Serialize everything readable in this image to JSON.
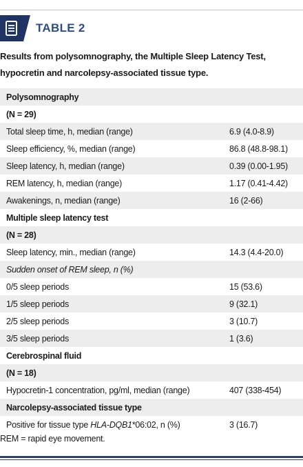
{
  "header": {
    "title": "TABLE 2"
  },
  "caption": "Results from polysomnography, the Multiple Sleep Latency Test, hypocretin and narcolepsy-associated tissue type.",
  "table": {
    "rows": [
      [
        "Polysomnography"
      ],
      [
        "(N = 29)"
      ],
      [
        "Total sleep time, h, median (range)",
        "6.9 (4.0-8.9)"
      ],
      [
        "Sleep efficiency, %, median (range)",
        "86.8 (48.8-98.1)"
      ],
      [
        "Sleep latency, h, median (range)",
        "0.39 (0.00-1.95)"
      ],
      [
        "REM latency, h, median (range)",
        "1.17 (0.41-4.42)"
      ],
      [
        "Awakenings, n, median (range)",
        "16 (2-66)"
      ],
      [
        "Multiple sleep latency test"
      ],
      [
        "(N = 28)"
      ],
      [
        "Sleep latency, min., median (range)",
        "14.3 (4.4-20.0)"
      ],
      [
        "Sudden onset of REM sleep, n (%)"
      ],
      [
        "0/5 sleep periods",
        "15 (53.6)"
      ],
      [
        "1/5 sleep periods",
        "9 (32.1)"
      ],
      [
        "2/5 sleep periods",
        "3 (10.7)"
      ],
      [
        "3/5 sleep periods",
        "1 (3.6)"
      ],
      [
        "Cerebrospinal fluid"
      ],
      [
        "(N = 18)"
      ],
      [
        "Hypocretin-1 concentration, pg/ml, median (range)",
        "407 (338-454)"
      ],
      [
        "Narcolepsy-associated tissue type"
      ],
      [
        [
          "Positive for tissue type ",
          "HLA-DQB1",
          "*06:02, n (%)"
        ],
        "3 (16.7)"
      ]
    ]
  },
  "footnote": "REM = rapid eye movement."
}
